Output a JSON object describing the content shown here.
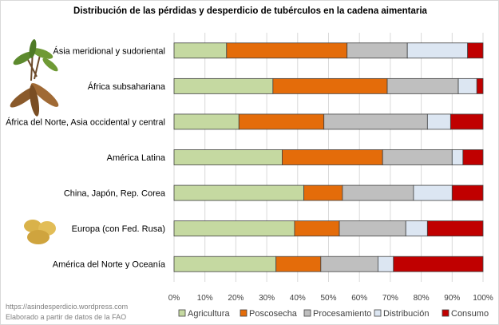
{
  "chart_data": {
    "type": "bar",
    "orientation": "horizontal",
    "stacked": "100%",
    "title": "Distribución de las pérdidas y desperdicio de tubérculos en la cadena aimentaria",
    "categories": [
      "Ásia meridional y sudoriental",
      "África subsahariana",
      "África del Norte, Asia occidental y central",
      "América Latina",
      "China, Japón, Rep. Corea",
      "Europa (con Fed. Rusa)",
      "América del Norte y Oceanía"
    ],
    "series": [
      {
        "name": "Agricultura",
        "color": "#c5d9a1",
        "values": [
          17,
          32,
          21,
          35,
          42,
          39,
          33
        ]
      },
      {
        "name": "Poscosecha",
        "color": "#e46c0a",
        "values": [
          39,
          37,
          27.5,
          32.5,
          12.5,
          14.5,
          14.5
        ]
      },
      {
        "name": "Procesamiento",
        "color": "#bfbfbf",
        "values": [
          19.5,
          23,
          33.5,
          22.5,
          23,
          21.5,
          18.5
        ]
      },
      {
        "name": "Distribución",
        "color": "#dce6f2",
        "values": [
          19.5,
          6,
          7.5,
          3.5,
          12.5,
          7,
          5
        ]
      },
      {
        "name": "Consumo",
        "color": "#c00000",
        "values": [
          5,
          2,
          10.5,
          6.5,
          10,
          18,
          29
        ]
      }
    ],
    "xlim": [
      0,
      100
    ],
    "xticks": [
      "0%",
      "10%",
      "20%",
      "30%",
      "40%",
      "50%",
      "60%",
      "70%",
      "80%",
      "90%",
      "100%"
    ],
    "grid": true,
    "legend": "bottom"
  },
  "footer": {
    "line1": "https://asindesperdicio.wordpress.com",
    "line2": "Elaborado a partir de datos de la FAO"
  }
}
